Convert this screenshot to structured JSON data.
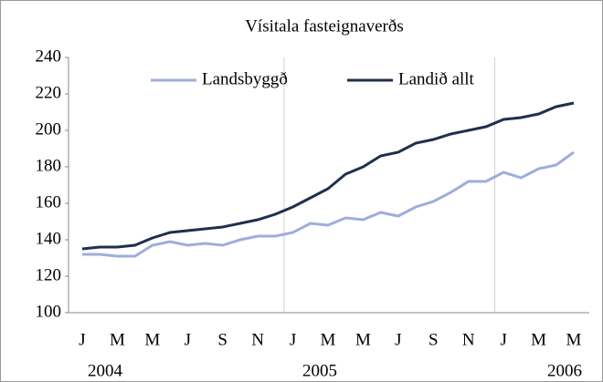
{
  "chart_data": {
    "type": "line",
    "title": "Vísitala fasteignaverðs",
    "categories": [
      "J",
      null,
      "M",
      null,
      "M",
      null,
      "J",
      null,
      "S",
      null,
      "N",
      null,
      "J",
      null,
      "M",
      null,
      "M",
      null,
      "J",
      null,
      "S",
      null,
      "N",
      null,
      "J",
      null,
      "M",
      null,
      "M"
    ],
    "year_labels": [
      "2004",
      "2005",
      "2006"
    ],
    "series": [
      {
        "name": "Landsbyggð",
        "color": "#9daedb",
        "values": [
          132,
          132,
          131,
          131,
          137,
          139,
          137,
          138,
          137,
          140,
          142,
          142,
          144,
          149,
          148,
          152,
          151,
          155,
          153,
          158,
          161,
          166,
          172,
          172,
          177,
          174,
          179,
          181,
          188
        ]
      },
      {
        "name": "Landið allt",
        "color": "#1f2f4f",
        "values": [
          135,
          136,
          136,
          137,
          141,
          144,
          145,
          146,
          147,
          149,
          151,
          154,
          158,
          163,
          168,
          176,
          180,
          186,
          188,
          193,
          195,
          198,
          200,
          202,
          206,
          207,
          209,
          213,
          215
        ]
      }
    ],
    "ylim": [
      100,
      240
    ],
    "yticks": [
      100,
      120,
      140,
      160,
      180,
      200,
      220,
      240
    ],
    "grid": false
  }
}
